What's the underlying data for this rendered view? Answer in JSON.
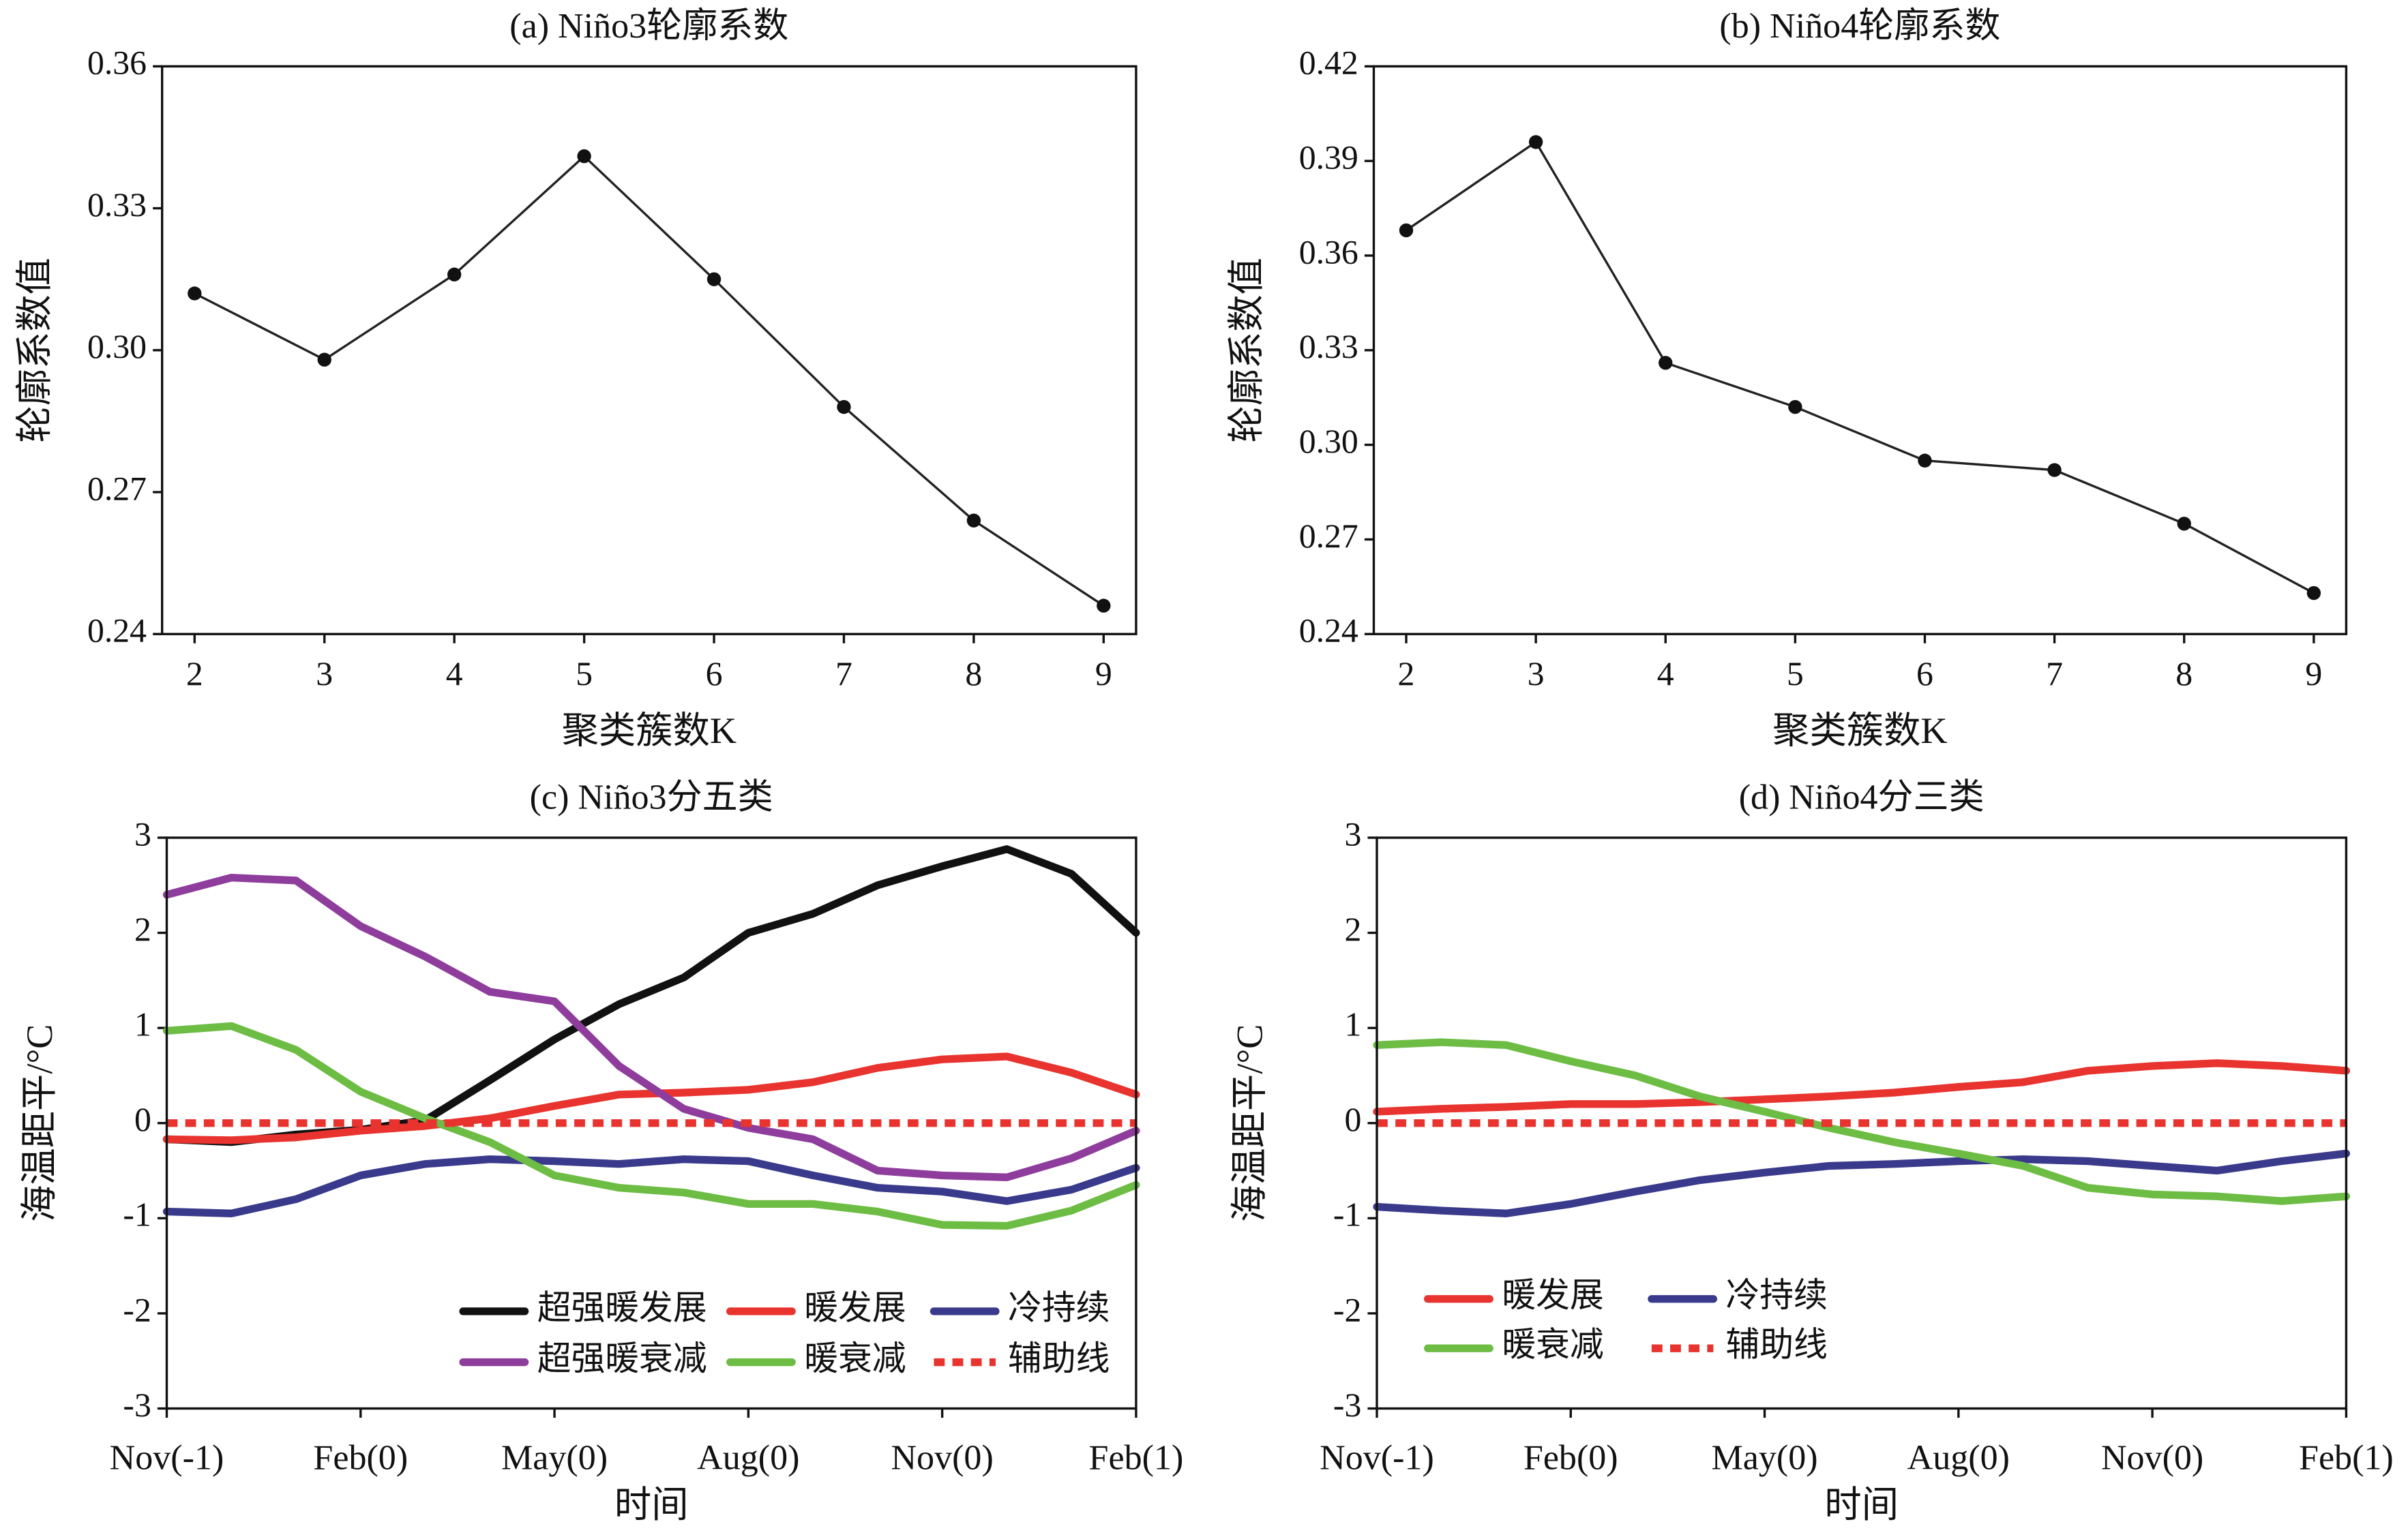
{
  "chart_data": [
    {
      "type": "line",
      "title": "(a) Niño3轮廓系数",
      "xlabel": "聚类簇数K",
      "ylabel": "轮廓系数值",
      "x": [
        2,
        3,
        4,
        5,
        6,
        7,
        8,
        9
      ],
      "values": [
        0.312,
        0.298,
        0.316,
        0.341,
        0.315,
        0.288,
        0.264,
        0.246
      ],
      "color": "#222222",
      "markers": true,
      "xlim": [
        1.75,
        9.25
      ],
      "xticks": [
        2,
        3,
        4,
        5,
        6,
        7,
        8,
        9
      ],
      "ylim": [
        0.24,
        0.36
      ],
      "yticks": [
        0.24,
        0.27,
        {
          "value": 0.3,
          "label": "0.30"
        },
        0.33,
        0.36
      ]
    },
    {
      "type": "line",
      "title": "(b) Niño4轮廓系数",
      "xlabel": "聚类簇数K",
      "ylabel": "轮廓系数值",
      "x": [
        2,
        3,
        4,
        5,
        6,
        7,
        8,
        9
      ],
      "values": [
        0.368,
        0.396,
        0.326,
        0.312,
        0.295,
        0.292,
        0.275,
        0.253
      ],
      "color": "#222222",
      "markers": true,
      "xlim": [
        1.75,
        9.25
      ],
      "xticks": [
        2,
        3,
        4,
        5,
        6,
        7,
        8,
        9
      ],
      "ylim": [
        0.24,
        0.42
      ],
      "yticks": [
        0.24,
        0.27,
        {
          "value": 0.3,
          "label": "0.30"
        },
        0.33,
        0.36,
        0.39,
        0.42
      ]
    },
    {
      "type": "line",
      "title": "(c) Niño3分五类",
      "xlabel": "时间",
      "ylabel": "海温距平/°C",
      "categories": [
        "Nov(-1)",
        null,
        null,
        "Feb(0)",
        null,
        null,
        "May(0)",
        null,
        null,
        "Aug(0)",
        null,
        null,
        "Nov(0)",
        null,
        null,
        "Feb(1)"
      ],
      "ylim": [
        -3,
        3
      ],
      "yticks": [
        -3,
        -2,
        -1,
        0,
        1,
        2,
        3
      ],
      "series": [
        {
          "name": "超强暖发展",
          "color": "#111111",
          "values": [
            -0.17,
            -0.2,
            -0.12,
            -0.07,
            0.03,
            0.45,
            0.88,
            1.25,
            1.53,
            2.0,
            2.2,
            2.5,
            2.7,
            2.88,
            2.62,
            2.0
          ]
        },
        {
          "name": "暖发展",
          "color": "#e8332e",
          "values": [
            -0.17,
            -0.18,
            -0.15,
            -0.08,
            -0.03,
            0.05,
            0.18,
            0.3,
            0.32,
            0.35,
            0.43,
            0.58,
            0.67,
            0.7,
            0.53,
            0.3
          ]
        },
        {
          "name": "冷持续",
          "color": "#3a3a8c",
          "values": [
            -0.93,
            -0.95,
            -0.8,
            -0.55,
            -0.43,
            -0.38,
            -0.4,
            -0.43,
            -0.38,
            -0.4,
            -0.55,
            -0.68,
            -0.72,
            -0.82,
            -0.7,
            -0.47
          ]
        },
        {
          "name": "超强暖衰减",
          "color": "#8e3d9c",
          "values": [
            2.4,
            2.58,
            2.55,
            2.07,
            1.75,
            1.38,
            1.28,
            0.6,
            0.15,
            -0.05,
            -0.17,
            -0.5,
            -0.55,
            -0.57,
            -0.37,
            -0.08
          ]
        },
        {
          "name": "暖衰减",
          "color": "#6dbd45",
          "values": [
            0.97,
            1.02,
            0.77,
            0.33,
            0.05,
            -0.2,
            -0.55,
            -0.68,
            -0.73,
            -0.85,
            -0.85,
            -0.93,
            -1.07,
            -1.08,
            -0.92,
            -0.65
          ]
        },
        {
          "name": "辅助线",
          "color": "#e8332e",
          "dashed": true,
          "values": [
            0,
            0,
            0,
            0,
            0,
            0,
            0,
            0,
            0,
            0,
            0,
            0,
            0,
            0,
            0,
            0
          ]
        }
      ]
    },
    {
      "type": "line",
      "title": "(d) Niño4分三类",
      "xlabel": "时间",
      "ylabel": "海温距平/°C",
      "categories": [
        "Nov(-1)",
        null,
        null,
        "Feb(0)",
        null,
        null,
        "May(0)",
        null,
        null,
        "Aug(0)",
        null,
        null,
        "Nov(0)",
        null,
        null,
        "Feb(1)"
      ],
      "ylim": [
        -3,
        3
      ],
      "yticks": [
        -3,
        -2,
        -1,
        0,
        1,
        2,
        3
      ],
      "series": [
        {
          "name": "暖发展",
          "color": "#e8332e",
          "values": [
            0.12,
            0.15,
            0.17,
            0.2,
            0.2,
            0.22,
            0.25,
            0.28,
            0.32,
            0.38,
            0.43,
            0.55,
            0.6,
            0.63,
            0.6,
            0.55
          ]
        },
        {
          "name": "冷持续",
          "color": "#3a3a8c",
          "values": [
            -0.88,
            -0.92,
            -0.95,
            -0.85,
            -0.72,
            -0.6,
            -0.52,
            -0.45,
            -0.43,
            -0.4,
            -0.38,
            -0.4,
            -0.45,
            -0.5,
            -0.4,
            -0.32
          ]
        },
        {
          "name": "暖衰减",
          "color": "#6dbd45",
          "values": [
            0.82,
            0.85,
            0.82,
            0.65,
            0.5,
            0.28,
            0.12,
            -0.05,
            -0.2,
            -0.32,
            -0.45,
            -0.68,
            -0.75,
            -0.77,
            -0.82,
            -0.77
          ]
        },
        {
          "name": "辅助线",
          "color": "#e8332e",
          "dashed": true,
          "values": [
            0,
            0,
            0,
            0,
            0,
            0,
            0,
            0,
            0,
            0,
            0,
            0,
            0,
            0,
            0,
            0
          ]
        }
      ]
    }
  ]
}
